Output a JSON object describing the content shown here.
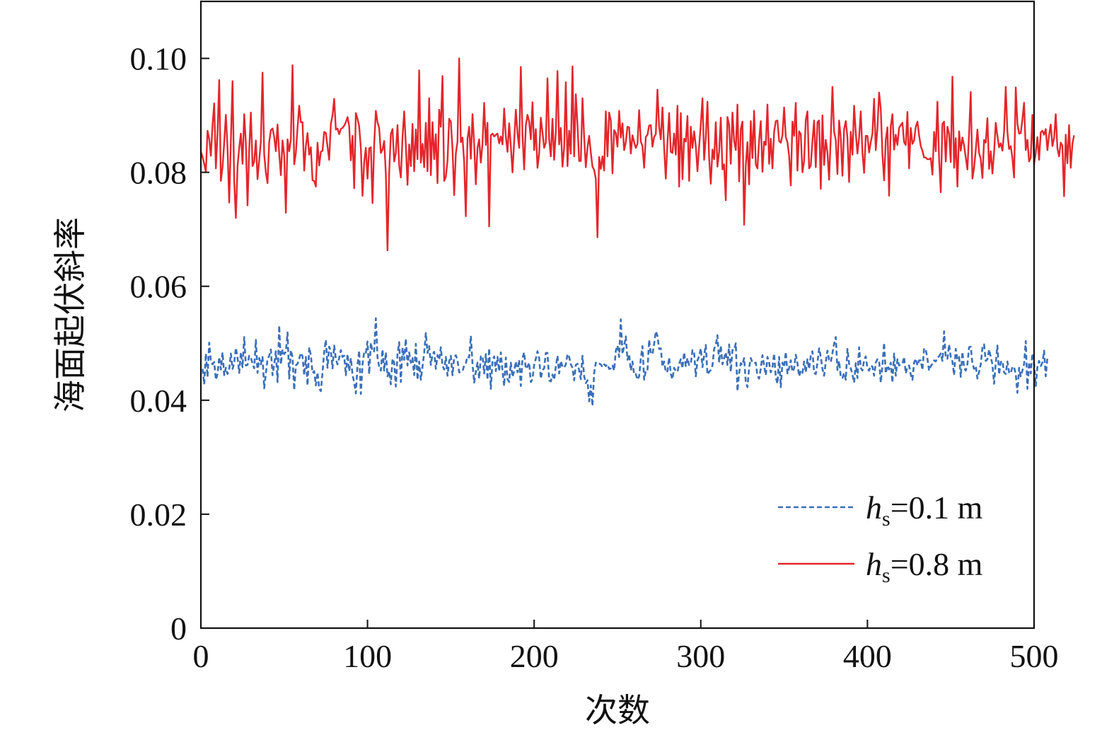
{
  "chart_data": {
    "type": "line",
    "xlabel": "次数",
    "ylabel": "海面起伏斜率",
    "xlim": [
      0,
      500
    ],
    "ylim": [
      0,
      0.11
    ],
    "xticks": [
      0,
      100,
      200,
      300,
      400,
      500
    ],
    "xtick_labels": [
      "0",
      "100",
      "200",
      "300",
      "400",
      "500"
    ],
    "yticks": [
      0,
      0.02,
      0.04,
      0.06,
      0.08,
      0.1
    ],
    "ytick_labels": [
      "0",
      "0.02",
      "0.04",
      "0.06",
      "0.08",
      "0.10"
    ],
    "grid": false,
    "legend_position": "bottom-right",
    "series": [
      {
        "name": "hs=0.1 m",
        "label_var": "h",
        "label_sub": "s",
        "label_rest": "=0.1 m",
        "style": "dashed",
        "color": "#3a6fb8",
        "x_start": 1,
        "x_step": 1,
        "values": [
          0.0455,
          0.0428,
          0.0482,
          0.0441,
          0.0501,
          0.0468,
          0.0463,
          0.0467,
          0.0436,
          0.0446,
          0.0476,
          0.0454,
          0.0484,
          0.0444,
          0.0457,
          0.0446,
          0.0455,
          0.0482,
          0.0455,
          0.0465,
          0.0492,
          0.0475,
          0.0448,
          0.0484,
          0.0458,
          0.0511,
          0.0461,
          0.0462,
          0.0478,
          0.0475,
          0.0464,
          0.0456,
          0.0506,
          0.0448,
          0.0474,
          0.0463,
          0.0476,
          0.0421,
          0.0447,
          0.0472,
          0.0478,
          0.0489,
          0.0444,
          0.0463,
          0.0486,
          0.0432,
          0.0531,
          0.0463,
          0.0489,
          0.0481,
          0.0485,
          0.0519,
          0.0438,
          0.0488,
          0.0476,
          0.0418,
          0.0461,
          0.0464,
          0.0473,
          0.0483,
          0.0477,
          0.0444,
          0.0476,
          0.0426,
          0.0493,
          0.0479,
          0.0448,
          0.0451,
          0.0426,
          0.0449,
          0.0421,
          0.0416,
          0.0449,
          0.0485,
          0.0506,
          0.0457,
          0.0494,
          0.0486,
          0.0456,
          0.0496,
          0.0472,
          0.0463,
          0.0474,
          0.0488,
          0.0476,
          0.0478,
          0.0444,
          0.0481,
          0.0451,
          0.0474,
          0.0445,
          0.0431,
          0.0412,
          0.0462,
          0.0487,
          0.0411,
          0.0463,
          0.0485,
          0.0483,
          0.0503,
          0.0446,
          0.0501,
          0.0485,
          0.0486,
          0.0544,
          0.0475,
          0.0459,
          0.0452,
          0.0489,
          0.0452,
          0.0484,
          0.0442,
          0.0451,
          0.0428,
          0.0473,
          0.0466,
          0.0424,
          0.0481,
          0.0502,
          0.0432,
          0.0492,
          0.0471,
          0.0508,
          0.0461,
          0.0484,
          0.0466,
          0.0474,
          0.0444,
          0.0499,
          0.0436,
          0.0468,
          0.0436,
          0.0459,
          0.0483,
          0.0518,
          0.0483,
          0.0495,
          0.0462,
          0.048,
          0.0485,
          0.0455,
          0.0479,
          0.0471,
          0.0493,
          0.0461,
          0.0454,
          0.0476,
          0.0443,
          0.0468,
          0.0478,
          0.0444,
          0.0475,
          0.0479,
          0.047,
          0.0449,
          0.045,
          0.0451,
          0.0461,
          0.0465,
          0.0477,
          0.0475,
          0.0513,
          0.0464,
          0.0431,
          0.045,
          0.0466,
          0.0438,
          0.0477,
          0.0478,
          0.0447,
          0.0481,
          0.0436,
          0.0491,
          0.042,
          0.0469,
          0.0477,
          0.0451,
          0.0476,
          0.0451,
          0.0484,
          0.0451,
          0.0425,
          0.0475,
          0.0437,
          0.0432,
          0.0466,
          0.0441,
          0.0451,
          0.0468,
          0.0449,
          0.0471,
          0.0425,
          0.0474,
          0.0484,
          0.0455,
          0.0459,
          0.0466,
          0.0432,
          0.0437,
          0.0462,
          0.0473,
          0.0486,
          0.0474,
          0.0438,
          0.0453,
          0.0456,
          0.0483,
          0.0483,
          0.0435,
          0.0433,
          0.0445,
          0.0436,
          0.0459,
          0.0478,
          0.0447,
          0.0469,
          0.0459,
          0.0457,
          0.0463,
          0.0481,
          0.0476,
          0.0463,
          0.0457,
          0.0435,
          0.0462,
          0.0464,
          0.0453,
          0.0437,
          0.0478,
          0.0442,
          0.043,
          0.0435,
          0.0398,
          0.0426,
          0.039,
          0.0448,
          0.0466,
          0.0463,
          0.0464,
          0.0463,
          0.0458,
          0.0463,
          0.046,
          0.0463,
          0.0455,
          0.0456,
          0.0461,
          0.0452,
          0.0487,
          0.0496,
          0.0476,
          0.0542,
          0.0481,
          0.0495,
          0.0512,
          0.0471,
          0.0481,
          0.0452,
          0.0468,
          0.0445,
          0.0446,
          0.0436,
          0.0442,
          0.0473,
          0.0495,
          0.0436,
          0.0452,
          0.0452,
          0.0506,
          0.0482,
          0.0481,
          0.0499,
          0.0521,
          0.0513,
          0.049,
          0.0491,
          0.0459,
          0.0468,
          0.0449,
          0.0451,
          0.0475,
          0.0446,
          0.0437,
          0.0457,
          0.0451,
          0.045,
          0.0464,
          0.0472,
          0.0456,
          0.0484,
          0.046,
          0.0474,
          0.0462,
          0.0464,
          0.0488,
          0.0484,
          0.0442,
          0.047,
          0.0477,
          0.0491,
          0.0458,
          0.0479,
          0.0497,
          0.0445,
          0.045,
          0.0453,
          0.0461,
          0.049,
          0.0497,
          0.0514,
          0.0466,
          0.0496,
          0.0463,
          0.0474,
          0.0484,
          0.0462,
          0.0498,
          0.045,
          0.0488,
          0.0488,
          0.05,
          0.0416,
          0.0448,
          0.0465,
          0.0462,
          0.0474,
          0.0432,
          0.0423,
          0.0457,
          0.0474,
          0.0466,
          0.0465,
          0.0466,
          0.0443,
          0.0438,
          0.0456,
          0.0479,
          0.0461,
          0.0444,
          0.0476,
          0.0466,
          0.0449,
          0.0457,
          0.0482,
          0.044,
          0.0429,
          0.0476,
          0.0423,
          0.0466,
          0.0458,
          0.0485,
          0.0447,
          0.0456,
          0.047,
          0.045,
          0.0456,
          0.048,
          0.0465,
          0.0442,
          0.0452,
          0.0448,
          0.0468,
          0.0449,
          0.0472,
          0.0455,
          0.0478,
          0.0486,
          0.0448,
          0.0446,
          0.0466,
          0.0491,
          0.0476,
          0.0455,
          0.0443,
          0.0467,
          0.0487,
          0.0471,
          0.0467,
          0.0483,
          0.0499,
          0.0511,
          0.0453,
          0.0469,
          0.0441,
          0.0439,
          0.0448,
          0.0436,
          0.049,
          0.0464,
          0.0456,
          0.0445,
          0.0431,
          0.0465,
          0.0439,
          0.0493,
          0.0457,
          0.0452,
          0.047,
          0.0477,
          0.0456,
          0.0452,
          0.0461,
          0.0459,
          0.0443,
          0.0466,
          0.0472,
          0.047,
          0.0431,
          0.0461,
          0.0501,
          0.0447,
          0.0461,
          0.0454,
          0.0466,
          0.0431,
          0.0482,
          0.0443,
          0.0472,
          0.0461,
          0.0463,
          0.0464,
          0.0476,
          0.0447,
          0.0459,
          0.0461,
          0.0445,
          0.0436,
          0.0466,
          0.0473,
          0.0461,
          0.047,
          0.047,
          0.0453,
          0.0491,
          0.0489,
          0.0473,
          0.0452,
          0.046,
          0.0464,
          0.047,
          0.0468,
          0.0475,
          0.0477,
          0.0482,
          0.0469,
          0.0521,
          0.0474,
          0.0473,
          0.0498,
          0.0476,
          0.0468,
          0.0444,
          0.049,
          0.0472,
          0.0476,
          0.0441,
          0.0485,
          0.0457,
          0.0452,
          0.0463,
          0.0493,
          0.0494,
          0.0465,
          0.0455,
          0.046,
          0.0438,
          0.045,
          0.0463,
          0.0492,
          0.0498,
          0.0469,
          0.0472,
          0.0489,
          0.0476,
          0.0463,
          0.0429,
          0.0465,
          0.0496,
          0.0445,
          0.0467,
          0.0469,
          0.0449,
          0.0446,
          0.0468,
          0.0449,
          0.0447,
          0.0459,
          0.0458,
          0.0446,
          0.0413,
          0.0457,
          0.0442,
          0.0452,
          0.0463,
          0.0504,
          0.042,
          0.0467,
          0.0447,
          0.0482,
          0.0465,
          0.0425,
          0.0458,
          0.0469,
          0.046,
          0.0466,
          0.0487,
          0.0442,
          0.0475
        ]
      },
      {
        "name": "hs=0.8 m",
        "label_var": "h",
        "label_sub": "s",
        "label_rest": "=0.8 m",
        "style": "solid",
        "color": "#e3262b",
        "x_start": 0,
        "x_step": 1,
        "values": [
          0.0836,
          0.0827,
          0.0815,
          0.0801,
          0.0873,
          0.0859,
          0.0829,
          0.0883,
          0.0921,
          0.0807,
          0.0869,
          0.0962,
          0.0785,
          0.0809,
          0.0852,
          0.0901,
          0.0842,
          0.0747,
          0.0855,
          0.096,
          0.0785,
          0.072,
          0.081,
          0.0843,
          0.0868,
          0.0815,
          0.0902,
          0.0851,
          0.0742,
          0.0839,
          0.0905,
          0.0811,
          0.0819,
          0.0856,
          0.0788,
          0.0821,
          0.0854,
          0.0975,
          0.0831,
          0.08,
          0.0781,
          0.0853,
          0.0874,
          0.0877,
          0.0862,
          0.0837,
          0.0884,
          0.0833,
          0.0795,
          0.0856,
          0.083,
          0.0729,
          0.0858,
          0.0837,
          0.0857,
          0.0988,
          0.0814,
          0.0834,
          0.0878,
          0.0917,
          0.0888,
          0.0888,
          0.0803,
          0.0846,
          0.0869,
          0.0831,
          0.0844,
          0.0786,
          0.0785,
          0.0775,
          0.0852,
          0.0812,
          0.0836,
          0.0838,
          0.0871,
          0.0869,
          0.0845,
          0.0822,
          0.0885,
          0.09,
          0.0929,
          0.0875,
          0.0877,
          0.0867,
          0.0876,
          0.0878,
          0.0882,
          0.0888,
          0.0897,
          0.0881,
          0.0821,
          0.0864,
          0.0772,
          0.0904,
          0.0894,
          0.0881,
          0.0842,
          0.0759,
          0.0818,
          0.0843,
          0.0789,
          0.0842,
          0.0844,
          0.0746,
          0.0849,
          0.0908,
          0.0888,
          0.0878,
          0.0834,
          0.084,
          0.0855,
          0.0797,
          0.0663,
          0.08,
          0.0867,
          0.0876,
          0.0819,
          0.0834,
          0.0883,
          0.0812,
          0.0791,
          0.0861,
          0.0907,
          0.0848,
          0.0778,
          0.0849,
          0.0811,
          0.0885,
          0.0802,
          0.0875,
          0.0823,
          0.0979,
          0.0817,
          0.085,
          0.0809,
          0.0887,
          0.0802,
          0.093,
          0.0795,
          0.0888,
          0.0823,
          0.0867,
          0.0781,
          0.091,
          0.088,
          0.0969,
          0.0785,
          0.0792,
          0.082,
          0.0894,
          0.0889,
          0.0841,
          0.076,
          0.0833,
          0.0854,
          0.1,
          0.0853,
          0.0861,
          0.0818,
          0.0723,
          0.0859,
          0.088,
          0.0824,
          0.0902,
          0.085,
          0.0779,
          0.0843,
          0.0858,
          0.0817,
          0.085,
          0.0922,
          0.0848,
          0.0887,
          0.0705,
          0.0865,
          0.0868,
          0.0863,
          0.0866,
          0.0868,
          0.0851,
          0.0863,
          0.0849,
          0.0912,
          0.0863,
          0.0836,
          0.0886,
          0.0846,
          0.08,
          0.0854,
          0.091,
          0.0869,
          0.0843,
          0.0985,
          0.0866,
          0.0805,
          0.0882,
          0.0901,
          0.0889,
          0.0858,
          0.0923,
          0.0839,
          0.0876,
          0.0808,
          0.0833,
          0.0896,
          0.087,
          0.0843,
          0.0852,
          0.0965,
          0.0858,
          0.0828,
          0.0894,
          0.0822,
          0.0871,
          0.0978,
          0.0849,
          0.0878,
          0.081,
          0.0843,
          0.0958,
          0.0811,
          0.0873,
          0.0833,
          0.0986,
          0.0828,
          0.0937,
          0.0883,
          0.082,
          0.082,
          0.093,
          0.0862,
          0.0809,
          0.0843,
          0.0864,
          0.0835,
          0.081,
          0.0804,
          0.0789,
          0.0686,
          0.0827,
          0.0806,
          0.0828,
          0.0803,
          0.0907,
          0.0828,
          0.0905,
          0.0891,
          0.0798,
          0.0874,
          0.0869,
          0.0845,
          0.0908,
          0.0861,
          0.0886,
          0.0839,
          0.0853,
          0.088,
          0.0879,
          0.0833,
          0.0865,
          0.0853,
          0.0843,
          0.085,
          0.0909,
          0.0854,
          0.0846,
          0.0808,
          0.0862,
          0.0866,
          0.0882,
          0.0883,
          0.0845,
          0.0862,
          0.0867,
          0.0945,
          0.088,
          0.0858,
          0.0914,
          0.0843,
          0.0789,
          0.0853,
          0.0904,
          0.0836,
          0.0834,
          0.0868,
          0.0831,
          0.0917,
          0.0775,
          0.0904,
          0.0788,
          0.0859,
          0.0854,
          0.0899,
          0.0785,
          0.088,
          0.0843,
          0.0872,
          0.0846,
          0.0802,
          0.0845,
          0.0884,
          0.093,
          0.0822,
          0.0861,
          0.0924,
          0.0825,
          0.078,
          0.084,
          0.0823,
          0.0888,
          0.081,
          0.0836,
          0.0896,
          0.0805,
          0.0814,
          0.0751,
          0.0897,
          0.0883,
          0.0815,
          0.0905,
          0.0855,
          0.0839,
          0.0919,
          0.0784,
          0.0876,
          0.0889,
          0.0708,
          0.0813,
          0.0853,
          0.0779,
          0.089,
          0.0825,
          0.0908,
          0.0814,
          0.0807,
          0.0856,
          0.089,
          0.0801,
          0.0854,
          0.0848,
          0.0919,
          0.0815,
          0.0859,
          0.0807,
          0.0871,
          0.089,
          0.0891,
          0.0855,
          0.0852,
          0.0865,
          0.0914,
          0.0862,
          0.0853,
          0.0829,
          0.0777,
          0.0889,
          0.0864,
          0.0922,
          0.0803,
          0.0872,
          0.0867,
          0.08,
          0.082,
          0.0892,
          0.0907,
          0.0807,
          0.0812,
          0.0855,
          0.0891,
          0.0809,
          0.0888,
          0.0891,
          0.0771,
          0.09,
          0.0813,
          0.0857,
          0.0835,
          0.0787,
          0.0862,
          0.095,
          0.0871,
          0.0857,
          0.0797,
          0.0891,
          0.0861,
          0.0794,
          0.0876,
          0.089,
          0.0861,
          0.0783,
          0.0871,
          0.0831,
          0.0917,
          0.0869,
          0.0833,
          0.0861,
          0.0907,
          0.0835,
          0.0799,
          0.0864,
          0.0864,
          0.0835,
          0.0853,
          0.0868,
          0.0929,
          0.0839,
          0.0878,
          0.094,
          0.0911,
          0.0832,
          0.0786,
          0.0857,
          0.0879,
          0.0759,
          0.0881,
          0.0902,
          0.084,
          0.0866,
          0.0848,
          0.0878,
          0.0883,
          0.0887,
          0.0853,
          0.0848,
          0.0906,
          0.0807,
          0.0878,
          0.085,
          0.0856,
          0.088,
          0.0889,
          0.0865,
          0.0846,
          0.0838,
          0.0826,
          0.0826,
          0.0823,
          0.0823,
          0.0825,
          0.0796,
          0.0871,
          0.0837,
          0.0924,
          0.0824,
          0.0765,
          0.0885,
          0.0889,
          0.0819,
          0.088,
          0.0868,
          0.0818,
          0.0968,
          0.0808,
          0.086,
          0.0775,
          0.0872,
          0.0838,
          0.0861,
          0.0847,
          0.0826,
          0.0805,
          0.0868,
          0.0941,
          0.0789,
          0.0808,
          0.0839,
          0.0875,
          0.0834,
          0.0823,
          0.079,
          0.0857,
          0.0852,
          0.0895,
          0.0806,
          0.0837,
          0.0798,
          0.0835,
          0.0887,
          0.0864,
          0.0844,
          0.0851,
          0.0838,
          0.0871,
          0.095,
          0.0871,
          0.0841,
          0.0846,
          0.0825,
          0.0791,
          0.0949,
          0.0885,
          0.0868,
          0.0869,
          0.0893,
          0.0922,
          0.0839,
          0.0857,
          0.0819,
          0.0826,
          0.0901,
          0.0814,
          0.0834,
          0.0862,
          0.0822,
          0.087,
          0.0873,
          0.0866,
          0.0876,
          0.0839,
          0.0865,
          0.0884,
          0.0846,
          0.086,
          0.0902,
          0.0842,
          0.0828,
          0.0852,
          0.0847,
          0.0758,
          0.0866,
          0.0816,
          0.0883,
          0.0808,
          0.085,
          0.0865
        ]
      }
    ]
  }
}
